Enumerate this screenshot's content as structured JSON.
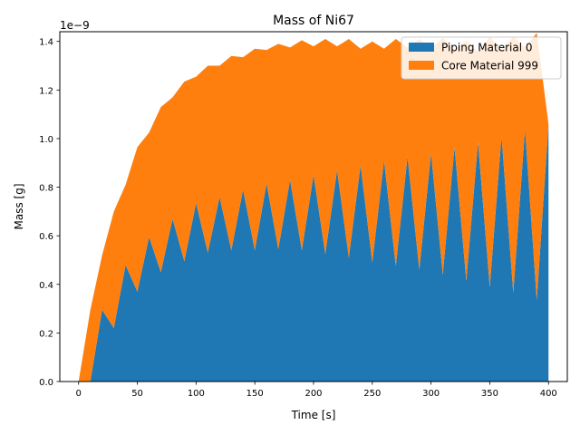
{
  "chart_data": {
    "type": "area",
    "stacked": true,
    "title": "Mass of Ni67",
    "xlabel": "Time [s]",
    "ylabel": "Mass [g]",
    "y_offset_label": "1e−9",
    "y_scale": 1e-09,
    "xlim": [
      -16,
      416
    ],
    "ylim": [
      0,
      1.44
    ],
    "xticks": [
      0,
      50,
      100,
      150,
      200,
      250,
      300,
      350,
      400
    ],
    "yticks": [
      0.0,
      0.2,
      0.4,
      0.6,
      0.8,
      1.0,
      1.2,
      1.4
    ],
    "ytick_labels": [
      "0.0",
      "0.2",
      "0.4",
      "0.6",
      "0.8",
      "1.0",
      "1.2",
      "1.4"
    ],
    "grid": false,
    "legend_position": "top-right",
    "x": [
      0,
      10,
      20,
      30,
      40,
      50,
      60,
      70,
      80,
      90,
      100,
      110,
      120,
      130,
      140,
      150,
      160,
      170,
      180,
      190,
      200,
      210,
      220,
      230,
      240,
      250,
      260,
      270,
      280,
      290,
      300,
      310,
      320,
      330,
      340,
      350,
      360,
      370,
      380,
      390,
      400
    ],
    "series": [
      {
        "name": "Piping Material 0",
        "color": "#1f77b4",
        "values": [
          0,
          0,
          0.295,
          0.22,
          0.48,
          0.37,
          0.595,
          0.45,
          0.67,
          0.495,
          0.735,
          0.53,
          0.76,
          0.54,
          0.79,
          0.54,
          0.815,
          0.545,
          0.83,
          0.54,
          0.85,
          0.525,
          0.87,
          0.51,
          0.89,
          0.49,
          0.91,
          0.475,
          0.925,
          0.46,
          0.94,
          0.44,
          0.965,
          0.415,
          0.985,
          0.39,
          1.01,
          0.365,
          1.04,
          0.335,
          1.06
        ]
      },
      {
        "name": "Core Material 999",
        "color": "#ff7f0e",
        "values": [
          0,
          0.295,
          0.225,
          0.48,
          0.33,
          0.595,
          0.43,
          0.68,
          0.5,
          0.74,
          0.52,
          0.77,
          0.54,
          0.8,
          0.545,
          0.83,
          0.55,
          0.845,
          0.545,
          0.865,
          0.53,
          0.885,
          0.51,
          0.9,
          0.48,
          0.91,
          0.46,
          0.935,
          0.45,
          0.95,
          0.43,
          0.975,
          0.4,
          0.99,
          0.37,
          1.03,
          0.355,
          1.055,
          0.335,
          1.1,
          0.0
        ]
      }
    ]
  }
}
